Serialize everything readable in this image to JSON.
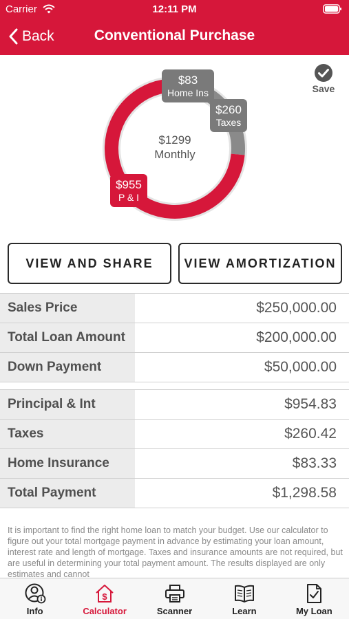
{
  "status_bar": {
    "carrier": "Carrier",
    "time": "12:11 PM"
  },
  "nav": {
    "back_label": "Back",
    "title": "Conventional Purchase"
  },
  "summary": {
    "total_amount": "$1299",
    "total_label": "Monthly",
    "segments": [
      {
        "amount": "$955",
        "label": "P & I",
        "value": 954.83,
        "color": "#d6173a"
      },
      {
        "amount": "$260",
        "label": "Taxes",
        "value": 260.42,
        "color": "#8a8a8a"
      },
      {
        "amount": "$83",
        "label": "Home Ins",
        "value": 83.33,
        "color": "#6f6f6f"
      }
    ],
    "save_label": "Save"
  },
  "actions": {
    "view_and_share": "VIEW AND SHARE",
    "view_amortization": "VIEW AMORTIZATION"
  },
  "loan_table": [
    {
      "label": "Sales Price",
      "value": "$250,000.00"
    },
    {
      "label": "Total Loan Amount",
      "value": "$200,000.00"
    },
    {
      "label": "Down Payment",
      "value": "$50,000.00"
    }
  ],
  "payment_table": [
    {
      "label": "Principal & Int",
      "value": "$954.83"
    },
    {
      "label": "Taxes",
      "value": "$260.42"
    },
    {
      "label": "Home Insurance",
      "value": "$83.33"
    },
    {
      "label": "Total Payment",
      "value": "$1,298.58"
    }
  ],
  "disclaimer": "It is important to find the right home loan to match your budget. Use our calculator to figure out your total mortgage payment in advance by estimating your loan amount, interest rate and length of mortgage. Taxes and insurance amounts are not required, but are useful in determining your total payment amount.  The results displayed are only estimates and cannot",
  "tabs": [
    {
      "label": "Info",
      "icon": "person-info-icon",
      "active": false
    },
    {
      "label": "Calculator",
      "icon": "house-dollar-icon",
      "active": true
    },
    {
      "label": "Scanner",
      "icon": "printer-icon",
      "active": false
    },
    {
      "label": "Learn",
      "icon": "open-book-icon",
      "active": false
    },
    {
      "label": "My Loan",
      "icon": "document-check-icon",
      "active": false
    }
  ],
  "colors": {
    "brand_red": "#d6173a",
    "gray": "#8a8a8a"
  }
}
